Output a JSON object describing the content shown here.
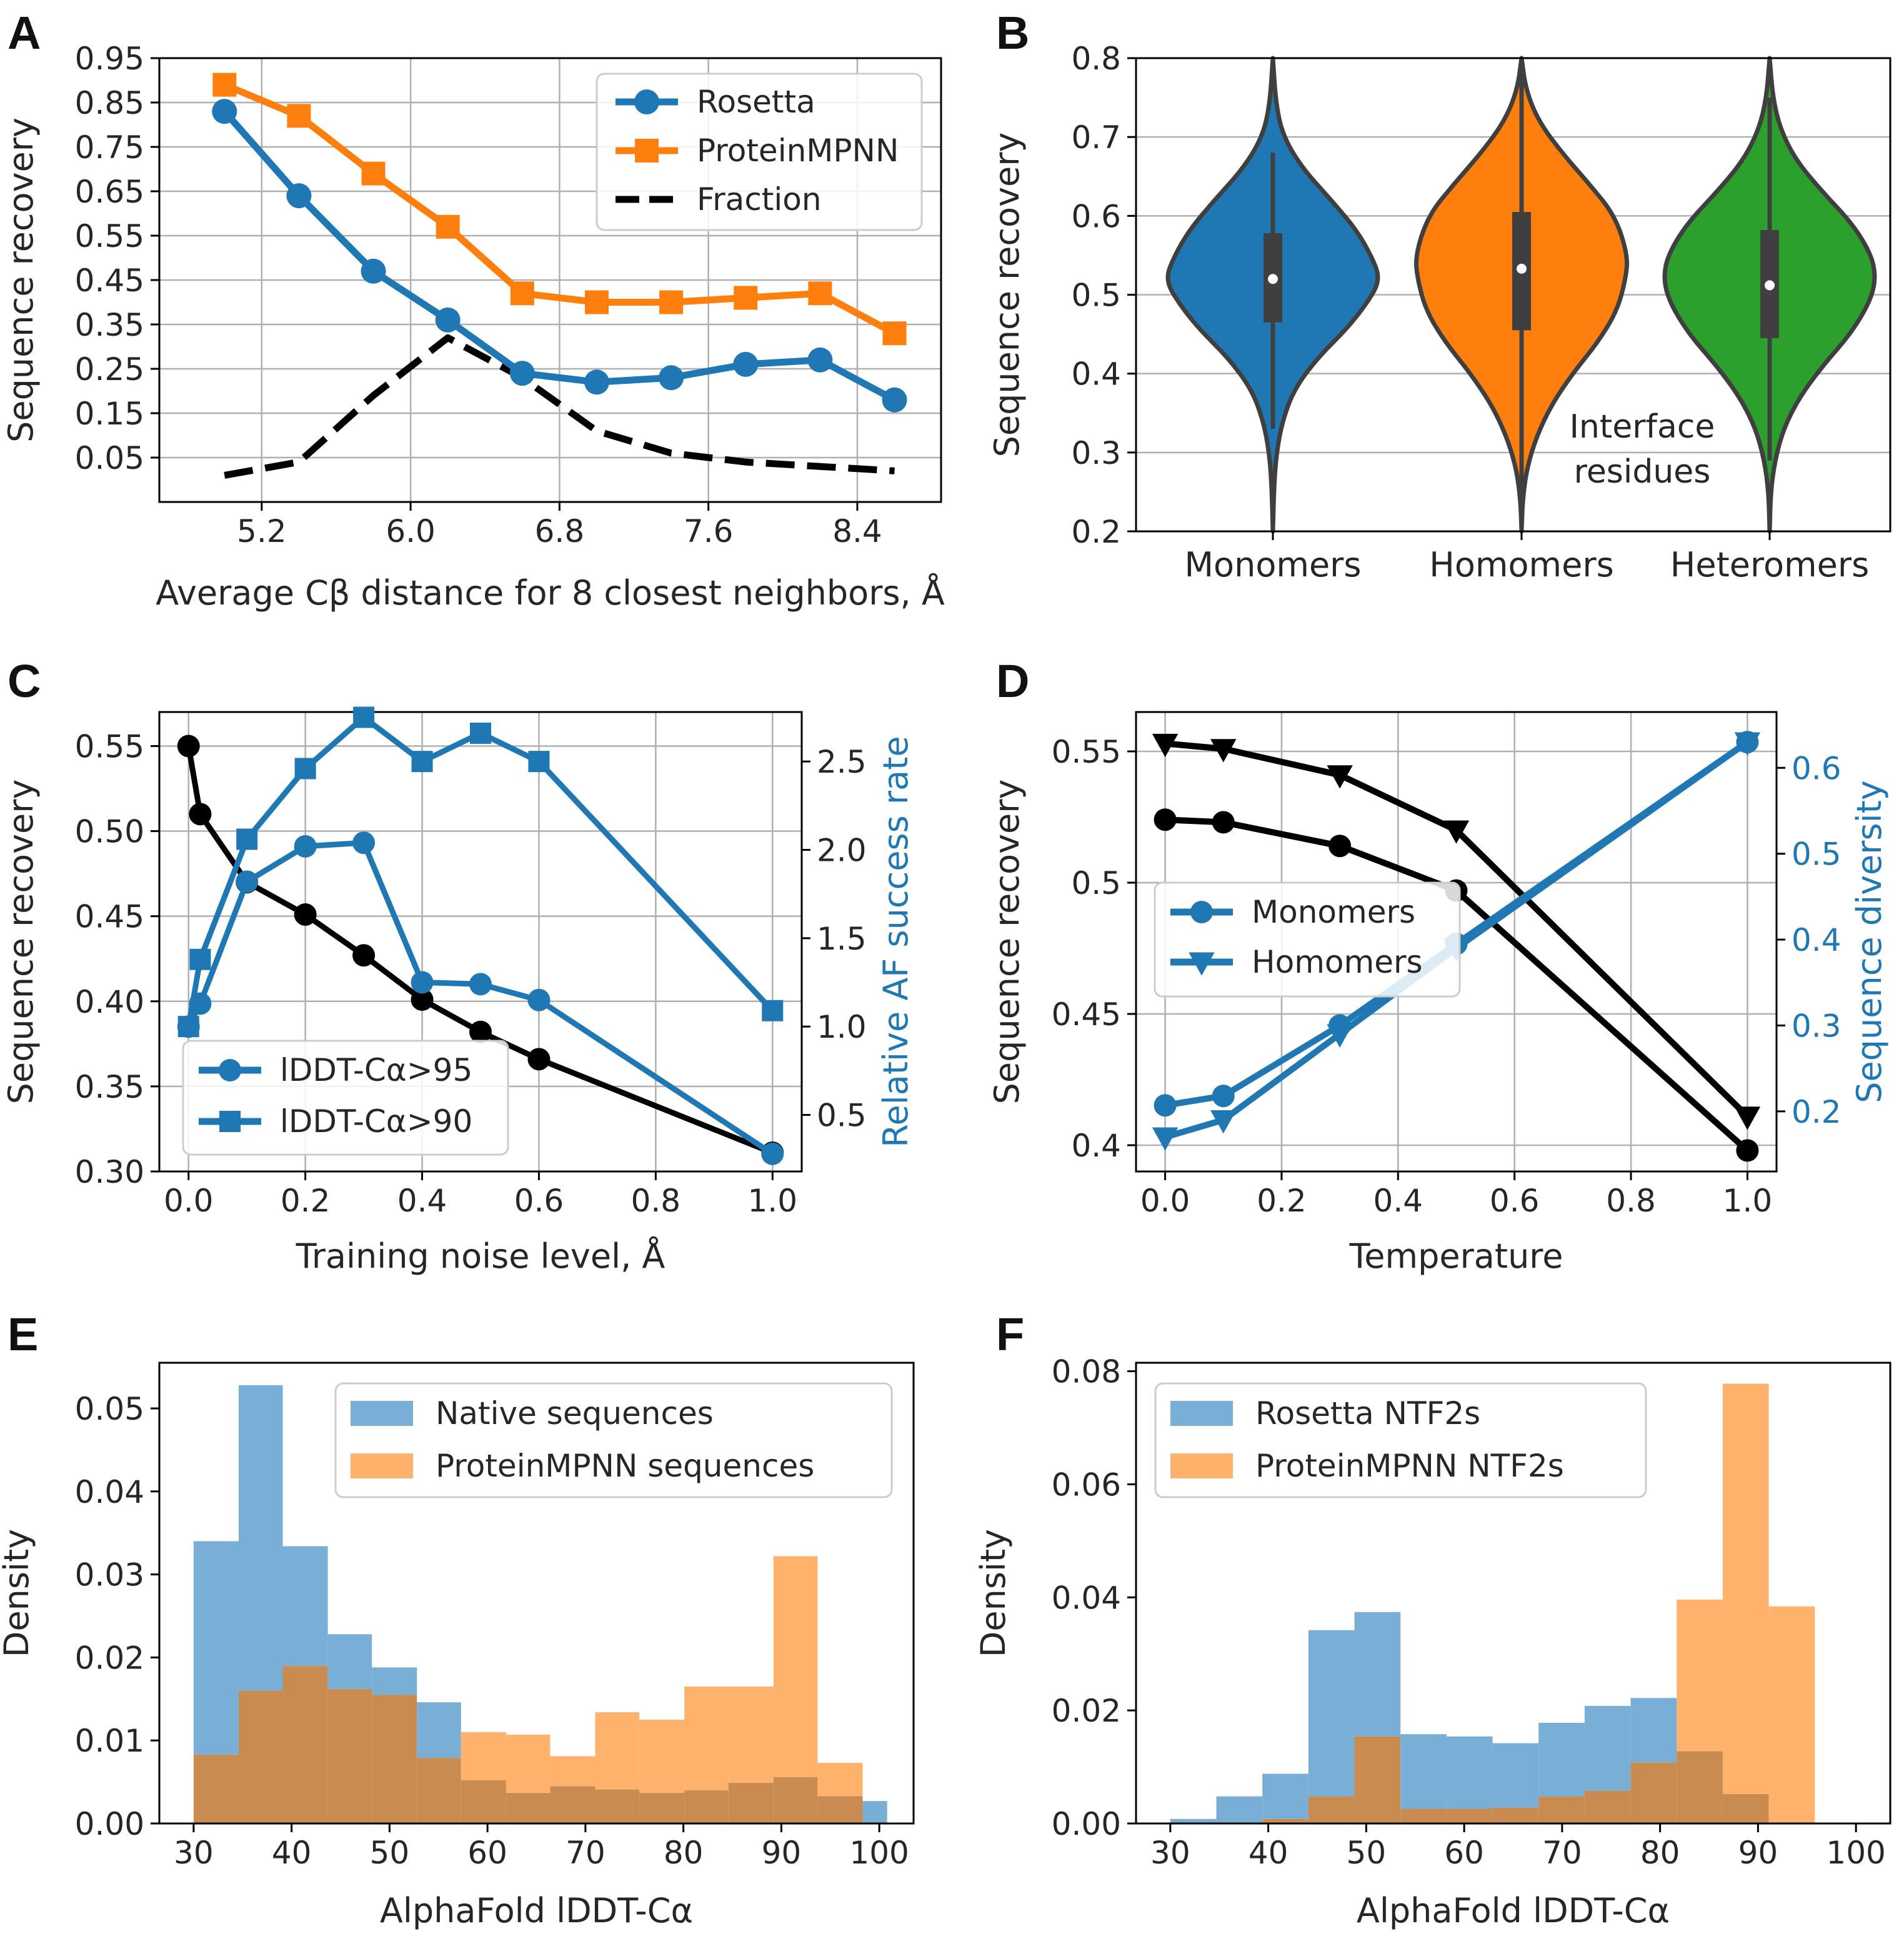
{
  "colors": {
    "rosetta": "#1f77b4",
    "proteinmpnn": "#ff7f0e",
    "fraction": "#000000",
    "heteromers": "#2ca02c",
    "black": "#000000",
    "axis_blue": "#1f77b4",
    "hist_blue": "#79aed6",
    "hist_orange": "#ffb26b",
    "hist_overlap": "#c98b4f",
    "grid": "#b0b0b0"
  },
  "chart_data": [
    {
      "panel": "A",
      "type": "line",
      "xlabel": "Average Cβ distance for 8 closest neighbors, Å",
      "ylabel": "Sequence recovery",
      "xlim": [
        4.65,
        8.85
      ],
      "ylim": [
        -0.05,
        0.95
      ],
      "xticks": [
        5.2,
        6.0,
        6.8,
        7.6,
        8.4
      ],
      "xtick_labels": [
        "5.2",
        "6.0",
        "6.8",
        "7.6",
        "8.4"
      ],
      "yticks": [
        0.05,
        0.15,
        0.25,
        0.35,
        0.45,
        0.55,
        0.65,
        0.75,
        0.85,
        0.95
      ],
      "ytick_labels": [
        "0.05",
        "0.15",
        "0.25",
        "0.35",
        "0.45",
        "0.55",
        "0.65",
        "0.75",
        "0.85",
        "0.95"
      ],
      "grid": true,
      "legend": "top-right",
      "x": [
        5.0,
        5.4,
        5.8,
        6.2,
        6.6,
        7.0,
        7.4,
        7.8,
        8.2,
        8.6
      ],
      "series": [
        {
          "name": "Rosetta",
          "marker": "circle",
          "color": "#1f77b4",
          "values": [
            0.83,
            0.64,
            0.47,
            0.36,
            0.24,
            0.22,
            0.23,
            0.26,
            0.27,
            0.18
          ]
        },
        {
          "name": "ProteinMPNN",
          "marker": "square",
          "color": "#ff7f0e",
          "values": [
            0.89,
            0.82,
            0.69,
            0.57,
            0.42,
            0.4,
            0.4,
            0.41,
            0.42,
            0.33
          ]
        },
        {
          "name": "Fraction",
          "marker": "none",
          "dash": "dashed",
          "color": "#000000",
          "values": [
            0.01,
            0.04,
            0.19,
            0.32,
            0.23,
            0.11,
            0.06,
            0.04,
            0.03,
            0.02
          ]
        }
      ]
    },
    {
      "panel": "B",
      "type": "violin",
      "ylabel": "Sequence recovery",
      "ylim": [
        0.2,
        0.8
      ],
      "yticks": [
        0.2,
        0.3,
        0.4,
        0.5,
        0.6,
        0.7,
        0.8
      ],
      "ytick_labels": [
        "0.2",
        "0.3",
        "0.4",
        "0.5",
        "0.6",
        "0.7",
        "0.8"
      ],
      "grid": true,
      "categories": [
        "Monomers",
        "Homomers",
        "Heteromers"
      ],
      "annotation": [
        "Interface",
        "residues"
      ],
      "violins": [
        {
          "name": "Monomers",
          "color": "#1f77b4",
          "median": 0.52,
          "q1": 0.465,
          "q3": 0.578,
          "whisker_low": 0.33,
          "whisker_high": 0.68,
          "min": 0.2,
          "max": 0.8,
          "profile_y": [
            0.2,
            0.26,
            0.3,
            0.34,
            0.38,
            0.42,
            0.46,
            0.5,
            0.52,
            0.54,
            0.58,
            0.62,
            0.66,
            0.7,
            0.74,
            0.8
          ],
          "profile_w": [
            0.0,
            0.012,
            0.035,
            0.09,
            0.2,
            0.42,
            0.72,
            0.94,
            1.0,
            0.96,
            0.8,
            0.55,
            0.28,
            0.1,
            0.03,
            0.0
          ]
        },
        {
          "name": "Homomers",
          "color": "#ff7f0e",
          "median": 0.533,
          "q1": 0.455,
          "q3": 0.605,
          "whisker_low": 0.24,
          "whisker_high": 0.78,
          "min": 0.2,
          "max": 0.8,
          "profile_y": [
            0.2,
            0.24,
            0.28,
            0.32,
            0.36,
            0.4,
            0.44,
            0.48,
            0.52,
            0.55,
            0.6,
            0.64,
            0.68,
            0.72,
            0.76,
            0.8
          ],
          "profile_w": [
            0.0,
            0.01,
            0.05,
            0.14,
            0.28,
            0.48,
            0.72,
            0.9,
            0.98,
            1.0,
            0.88,
            0.64,
            0.38,
            0.16,
            0.04,
            0.0
          ]
        },
        {
          "name": "Heteromers",
          "color": "#2ca02c",
          "median": 0.512,
          "q1": 0.445,
          "q3": 0.582,
          "whisker_low": 0.29,
          "whisker_high": 0.75,
          "min": 0.2,
          "max": 0.8,
          "profile_y": [
            0.2,
            0.25,
            0.29,
            0.33,
            0.37,
            0.41,
            0.45,
            0.49,
            0.52,
            0.55,
            0.59,
            0.63,
            0.67,
            0.71,
            0.75,
            0.8
          ],
          "profile_w": [
            0.0,
            0.01,
            0.05,
            0.13,
            0.28,
            0.5,
            0.76,
            0.94,
            1.0,
            0.96,
            0.78,
            0.5,
            0.25,
            0.1,
            0.03,
            0.0
          ]
        }
      ]
    },
    {
      "panel": "C",
      "type": "line",
      "xlabel": "Training noise level, Å",
      "ylabel": "Sequence recovery",
      "y2label": "Relative AF success rate",
      "xlim": [
        -0.05,
        1.05
      ],
      "ylim": [
        0.3,
        0.57
      ],
      "y2lim": [
        0.18,
        2.78
      ],
      "xticks": [
        0.0,
        0.2,
        0.4,
        0.6,
        0.8,
        1.0
      ],
      "xtick_labels": [
        "0.0",
        "0.2",
        "0.4",
        "0.6",
        "0.8",
        "1.0"
      ],
      "yticks": [
        0.3,
        0.35,
        0.4,
        0.45,
        0.5,
        0.55
      ],
      "ytick_labels": [
        "0.30",
        "0.35",
        "0.40",
        "0.45",
        "0.50",
        "0.55"
      ],
      "y2ticks": [
        0.5,
        1.0,
        1.5,
        2.0,
        2.5
      ],
      "y2tick_labels": [
        "0.5",
        "1.0",
        "1.5",
        "2.0",
        "2.5"
      ],
      "grid": true,
      "legend": "bottom-left",
      "series": [
        {
          "name": "",
          "axis": "left",
          "marker": "circle",
          "color": "#000000",
          "x": [
            0.0,
            0.02,
            0.1,
            0.2,
            0.3,
            0.4,
            0.5,
            0.6,
            1.0
          ],
          "values": [
            0.55,
            0.51,
            0.47,
            0.451,
            0.427,
            0.401,
            0.382,
            0.366,
            0.311
          ]
        },
        {
          "name": "lDDT-Cα>95",
          "axis": "right",
          "marker": "circle",
          "color": "#1f77b4",
          "x": [
            0.0,
            0.02,
            0.1,
            0.2,
            0.3,
            0.4,
            0.5,
            0.6,
            1.0
          ],
          "values": [
            1.0,
            1.13,
            1.82,
            2.02,
            2.04,
            1.25,
            1.24,
            1.15,
            0.28
          ]
        },
        {
          "name": "lDDT-Cα>90",
          "axis": "right",
          "marker": "square",
          "color": "#1f77b4",
          "x": [
            0.0,
            0.02,
            0.1,
            0.2,
            0.3,
            0.4,
            0.5,
            0.6,
            1.0
          ],
          "values": [
            1.0,
            1.38,
            2.06,
            2.46,
            2.75,
            2.5,
            2.66,
            2.5,
            1.09
          ]
        }
      ]
    },
    {
      "panel": "D",
      "type": "line",
      "xlabel": "Temperature",
      "ylabel": "Sequence recovery",
      "y2label": "Sequence diversity",
      "xlim": [
        -0.05,
        1.05
      ],
      "ylim": [
        0.39,
        0.565
      ],
      "y2lim": [
        0.13,
        0.665
      ],
      "xticks": [
        0.0,
        0.2,
        0.4,
        0.6,
        0.8,
        1.0
      ],
      "xtick_labels": [
        "0.0",
        "0.2",
        "0.4",
        "0.6",
        "0.8",
        "1.0"
      ],
      "yticks": [
        0.4,
        0.45,
        0.5,
        0.55
      ],
      "ytick_labels": [
        "0.4",
        "0.45",
        "0.5",
        "0.55"
      ],
      "y2ticks": [
        0.2,
        0.3,
        0.4,
        0.5,
        0.6
      ],
      "y2tick_labels": [
        "0.2",
        "0.3",
        "0.4",
        "0.5",
        "0.6"
      ],
      "grid": true,
      "legend": "center-left",
      "x": [
        0.0,
        0.1,
        0.3,
        0.5,
        1.0
      ],
      "series": [
        {
          "name": "Monomers",
          "axis": "left",
          "marker": "circle",
          "color": "#000000",
          "values": [
            0.524,
            0.523,
            0.514,
            0.497,
            0.398
          ]
        },
        {
          "name": "Homomers",
          "axis": "left",
          "marker": "triangle-down",
          "color": "#000000",
          "values": [
            0.553,
            0.551,
            0.541,
            0.52,
            0.411
          ]
        },
        {
          "name": "Monomers",
          "axis": "right",
          "marker": "circle",
          "color": "#1f77b4",
          "values": [
            0.207,
            0.218,
            0.3,
            0.395,
            0.63
          ]
        },
        {
          "name": "Homomers",
          "axis": "right",
          "marker": "triangle-down",
          "color": "#1f77b4",
          "values": [
            0.17,
            0.19,
            0.29,
            0.39,
            0.63
          ]
        }
      ]
    },
    {
      "panel": "E",
      "type": "histogram",
      "xlabel": "AlphaFold lDDT-Cα",
      "ylabel": "Density",
      "xlim": [
        26.5,
        103.5
      ],
      "ylim": [
        0.0,
        0.0555
      ],
      "xticks": [
        30,
        40,
        50,
        60,
        70,
        80,
        90,
        100
      ],
      "xtick_labels": [
        "30",
        "40",
        "50",
        "60",
        "70",
        "80",
        "90",
        "100"
      ],
      "yticks": [
        0.0,
        0.01,
        0.02,
        0.03,
        0.04,
        0.05
      ],
      "ytick_labels": [
        "0.00",
        "0.01",
        "0.02",
        "0.03",
        "0.04",
        "0.05"
      ],
      "grid": false,
      "legend": "top-right",
      "bin_edges": [
        30,
        34.6,
        39.1,
        43.7,
        48.2,
        52.8,
        57.3,
        61.9,
        66.4,
        71,
        75.5,
        80.1,
        84.6,
        89.2,
        93.7,
        98.3,
        100.8
      ],
      "series": [
        {
          "name": "Native sequences",
          "color": "#79aed6",
          "values": [
            0.034,
            0.0528,
            0.0334,
            0.0228,
            0.0188,
            0.0146,
            0.0052,
            0.0037,
            0.0045,
            0.0041,
            0.0037,
            0.004,
            0.0049,
            0.0056,
            0.0033,
            0.0027
          ]
        },
        {
          "name": "ProteinMPNN sequences",
          "color": "#ffb26b",
          "values": [
            0.0083,
            0.016,
            0.019,
            0.0162,
            0.0155,
            0.0079,
            0.011,
            0.0107,
            0.0081,
            0.0134,
            0.0125,
            0.0165,
            0.0165,
            0.0322,
            0.0073,
            0.0
          ]
        }
      ]
    },
    {
      "panel": "F",
      "type": "histogram",
      "xlabel": "AlphaFold lDDT-Cα",
      "ylabel": "Density",
      "xlim": [
        26.5,
        103.5
      ],
      "ylim": [
        0.0,
        0.0815
      ],
      "xticks": [
        30,
        40,
        50,
        60,
        70,
        80,
        90,
        100
      ],
      "xtick_labels": [
        "30",
        "40",
        "50",
        "60",
        "70",
        "80",
        "90",
        "100"
      ],
      "yticks": [
        0.0,
        0.02,
        0.04,
        0.06,
        0.08
      ],
      "ytick_labels": [
        "0.00",
        "0.02",
        "0.04",
        "0.06",
        "0.08"
      ],
      "grid": false,
      "legend": "top-left",
      "bin_edges": [
        30,
        34.7,
        39.4,
        44.1,
        48.8,
        53.5,
        58.2,
        62.9,
        67.6,
        72.3,
        77,
        81.7,
        86.4,
        91.1,
        95.8
      ],
      "series": [
        {
          "name": "Rosetta NTF2s",
          "color": "#79aed6",
          "values": [
            0.0008,
            0.0048,
            0.0088,
            0.0342,
            0.0374,
            0.0158,
            0.0154,
            0.0142,
            0.0178,
            0.0208,
            0.0222,
            0.0128,
            0.0052,
            0.0
          ]
        },
        {
          "name": "ProteinMPNN NTF2s",
          "color": "#ffb26b",
          "values": [
            0.0,
            0.0,
            0.0008,
            0.0048,
            0.0154,
            0.0026,
            0.0026,
            0.0028,
            0.0048,
            0.0058,
            0.0108,
            0.0396,
            0.0778,
            0.0384
          ]
        }
      ]
    }
  ]
}
